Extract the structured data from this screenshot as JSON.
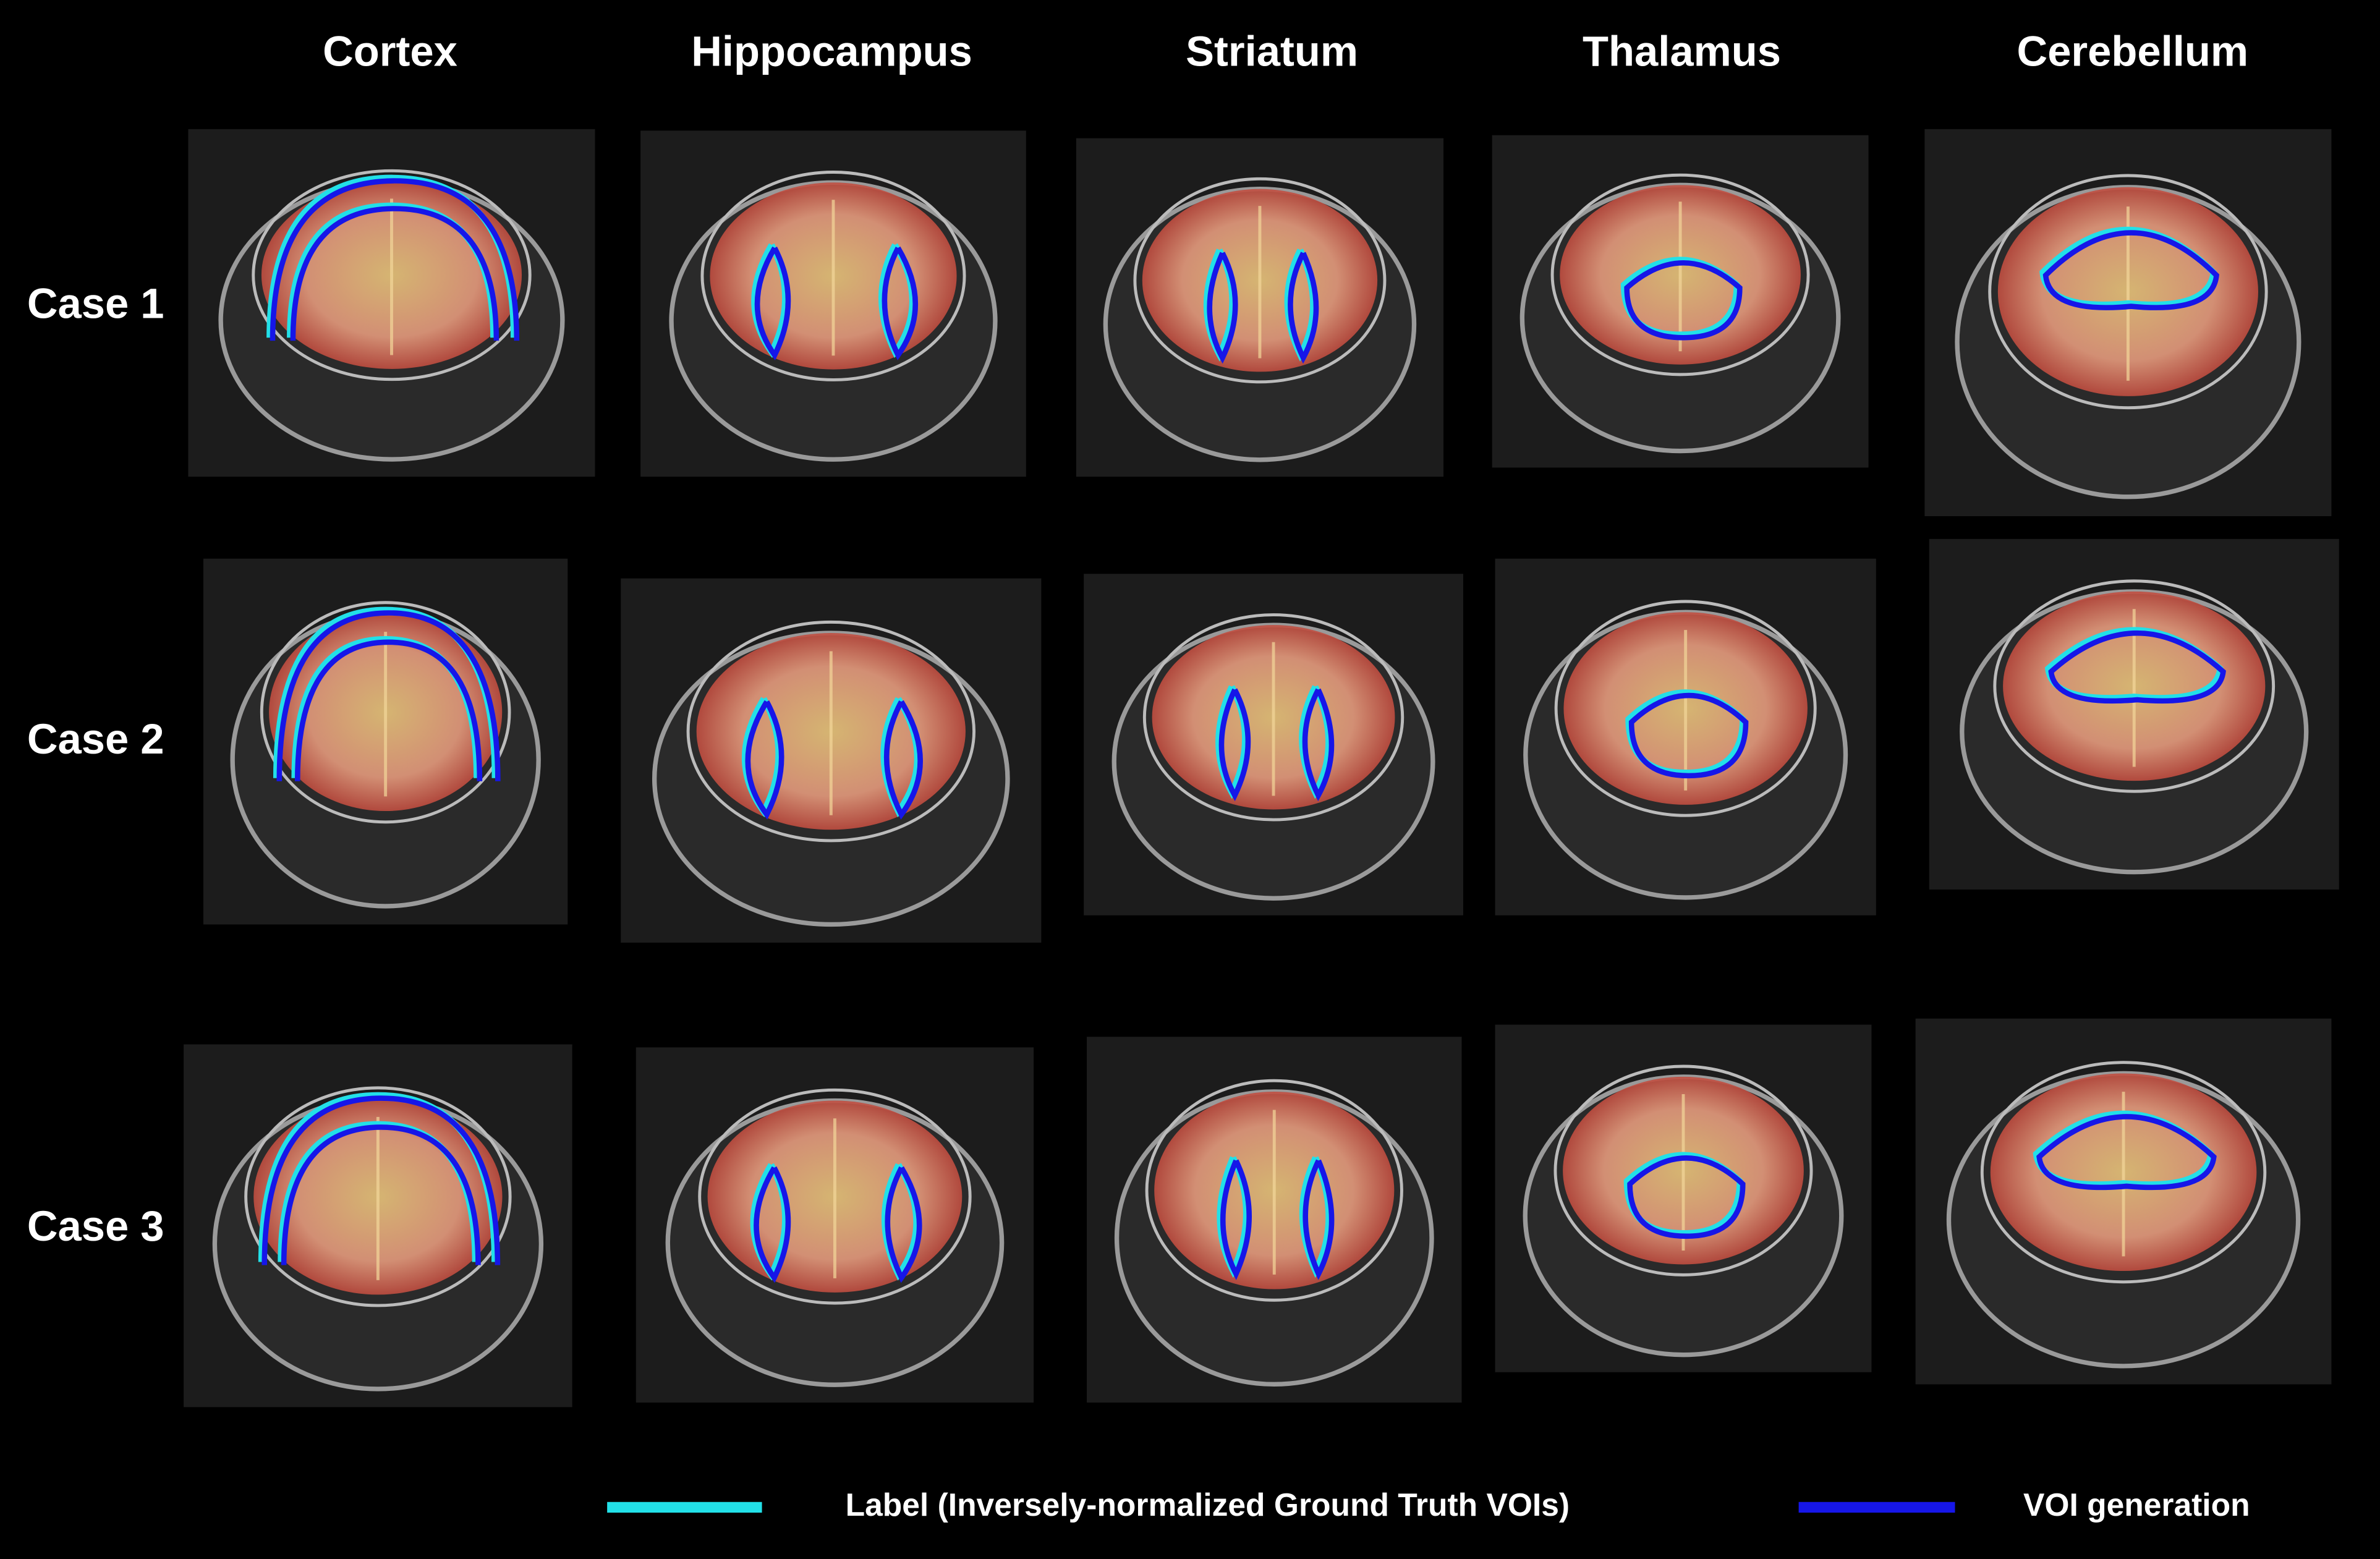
{
  "columns": [
    "Cortex",
    "Hippocampus",
    "Striatum",
    "Thalamus",
    "Cerebellum"
  ],
  "rows": [
    "Case 1",
    "Case 2",
    "Case 3"
  ],
  "legend": [
    "Label (Inversely-normalized  Ground Truth VOIs)",
    "VOI generation"
  ]
}
